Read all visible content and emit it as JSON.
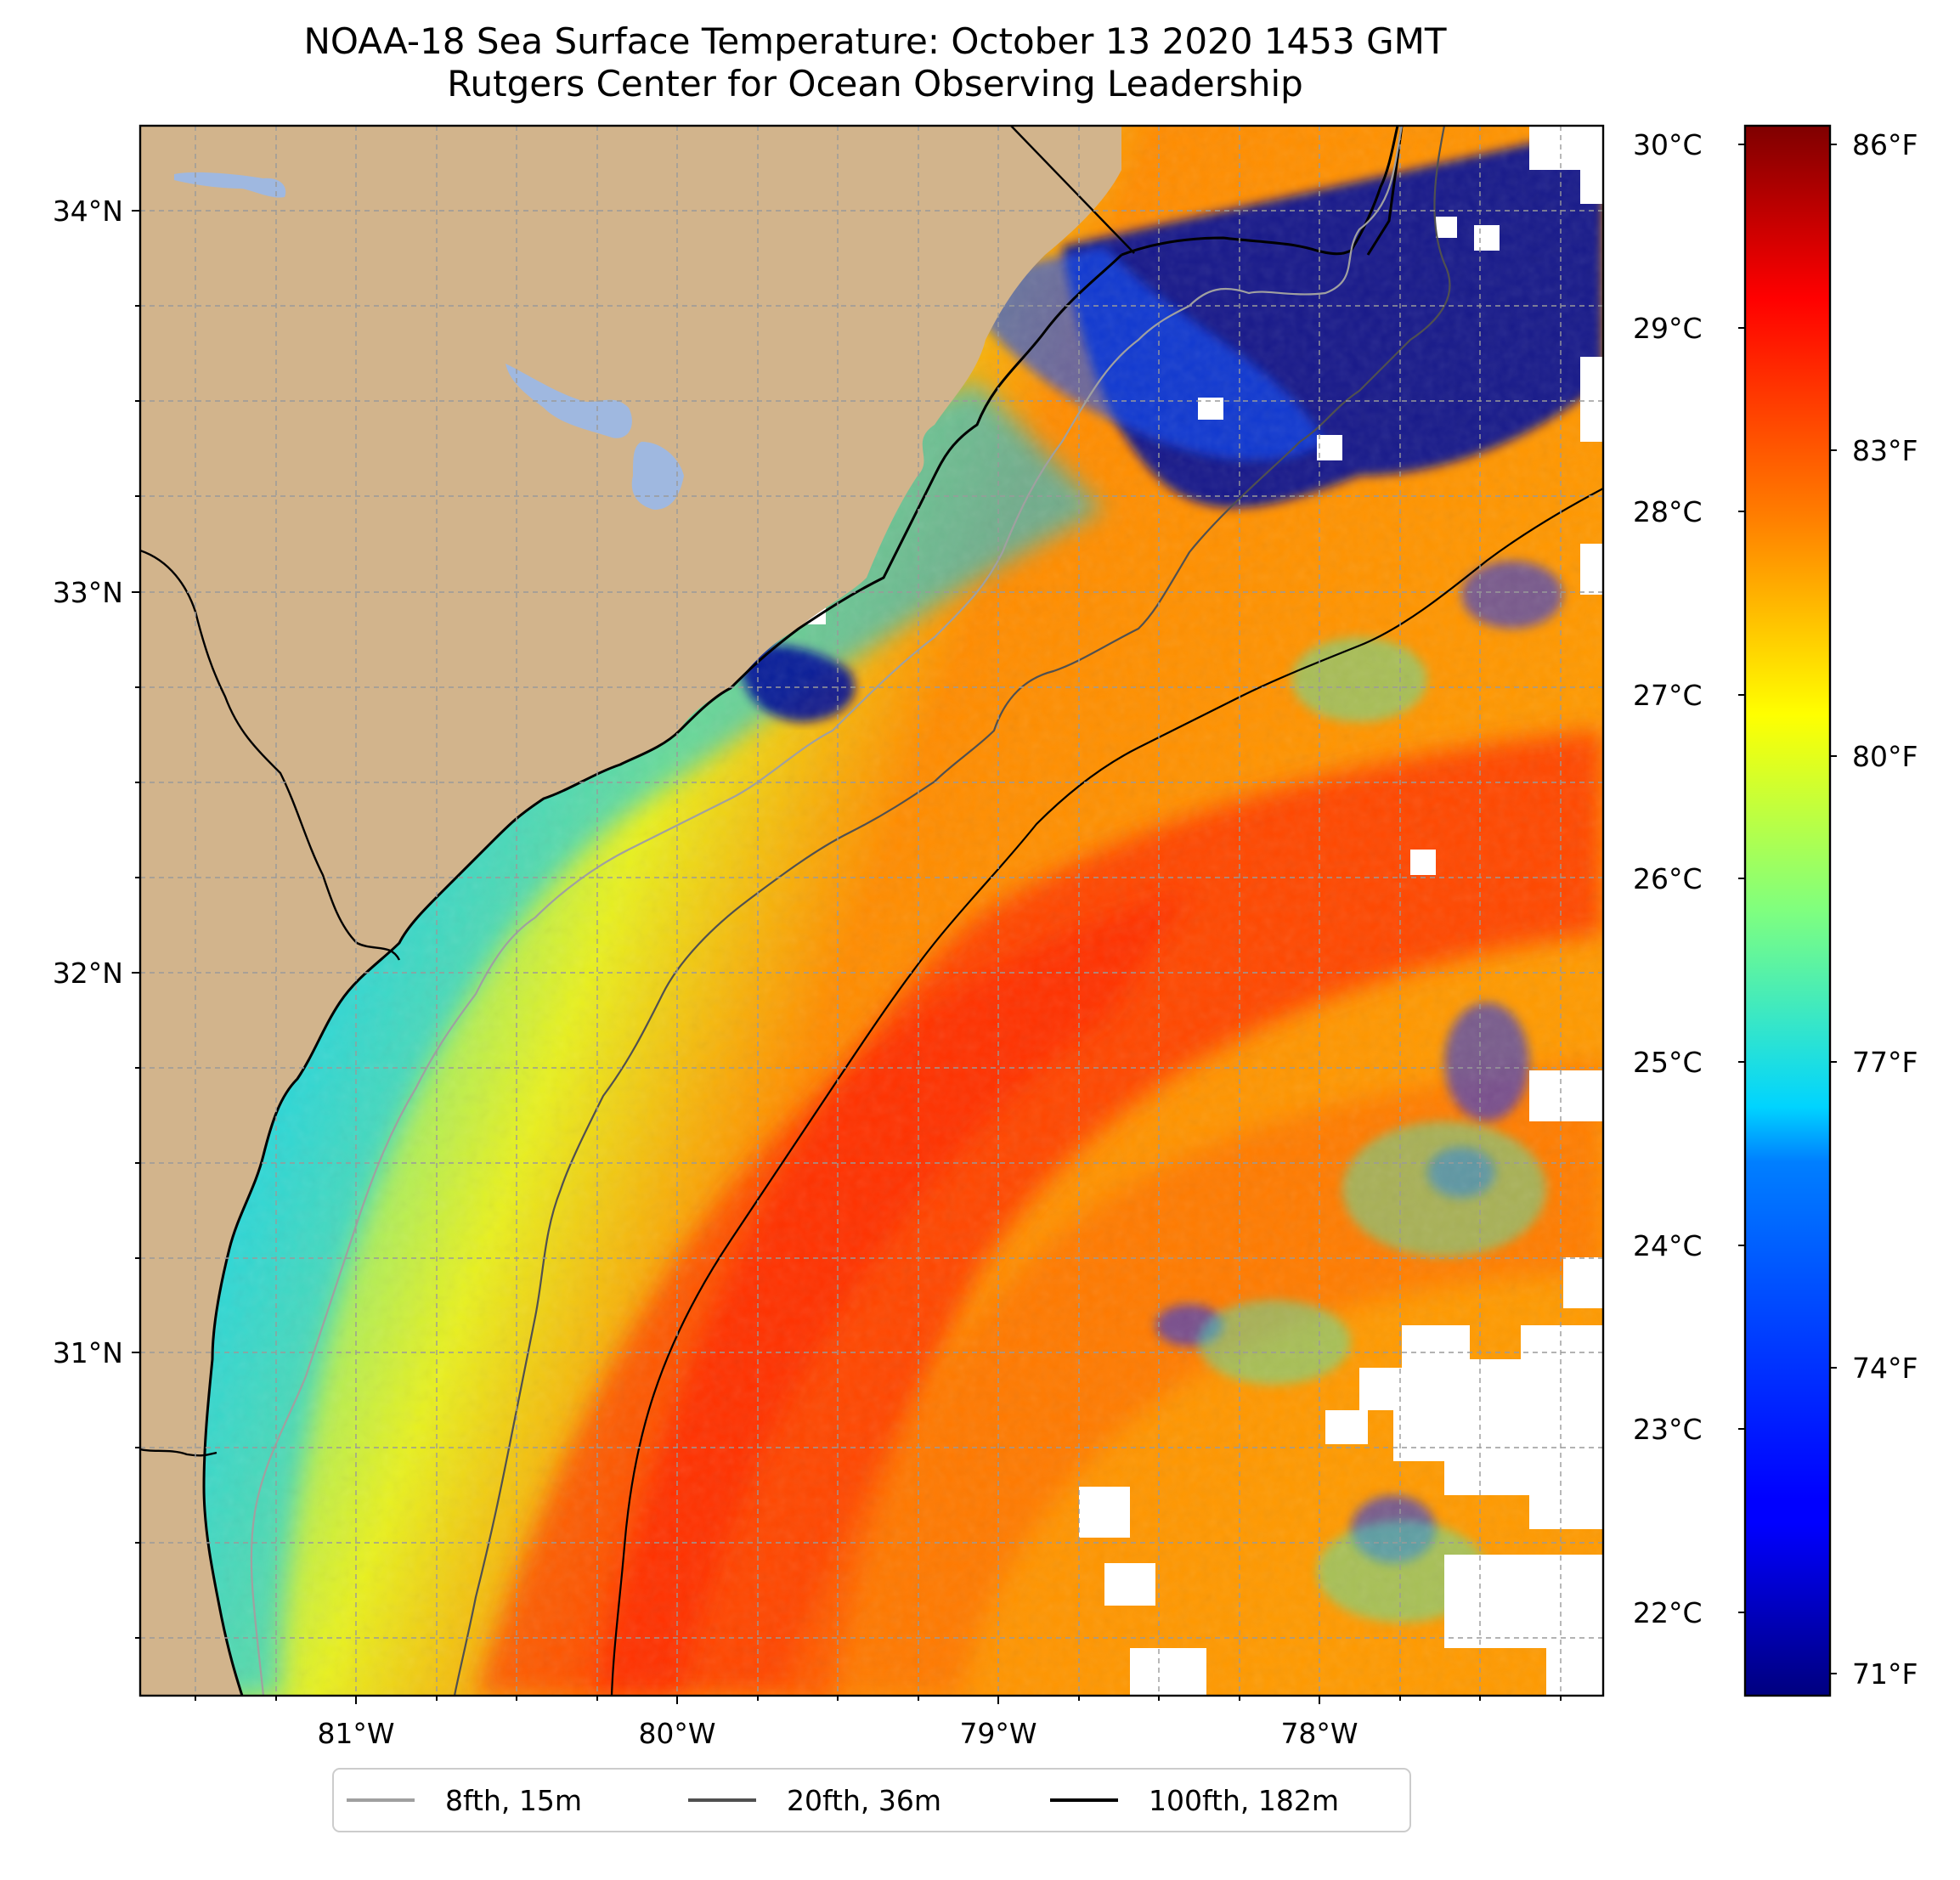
{
  "title": "NOAA-18 Sea Surface Temperature: October 13 2020 1453 GMT",
  "subtitle": "Rutgers Center for Ocean Observing Leadership",
  "map": {
    "lat_labels": [
      "34°N",
      "33°N",
      "32°N",
      "31°N"
    ],
    "lon_labels": [
      "81°W",
      "80°W",
      "79°W",
      "78°W"
    ],
    "colors": {
      "land": "#d2b48c",
      "lake": "#9fb8e0",
      "no_data": "#ffffff",
      "gridline": "#9a9a9a"
    }
  },
  "colorbar": {
    "celsius_labels": [
      "30°C",
      "29°C",
      "28°C",
      "27°C",
      "26°C",
      "25°C",
      "24°C",
      "23°C",
      "22°C"
    ],
    "fahrenheit_labels": [
      "86°F",
      "83°F",
      "80°F",
      "77°F",
      "74°F",
      "71°F"
    ],
    "colormap": "jet",
    "colormap_stops": [
      "#00007f",
      "#0000ff",
      "#007fff",
      "#00ffff",
      "#7fff7f",
      "#ffff00",
      "#ff7f00",
      "#ff0000",
      "#7f0000"
    ]
  },
  "legend": {
    "items": [
      {
        "label": "8fth, 15m",
        "color": "#a0a0a0"
      },
      {
        "label": "20fth, 36m",
        "color": "#505050"
      },
      {
        "label": "100fth, 182m",
        "color": "#000000"
      }
    ]
  }
}
